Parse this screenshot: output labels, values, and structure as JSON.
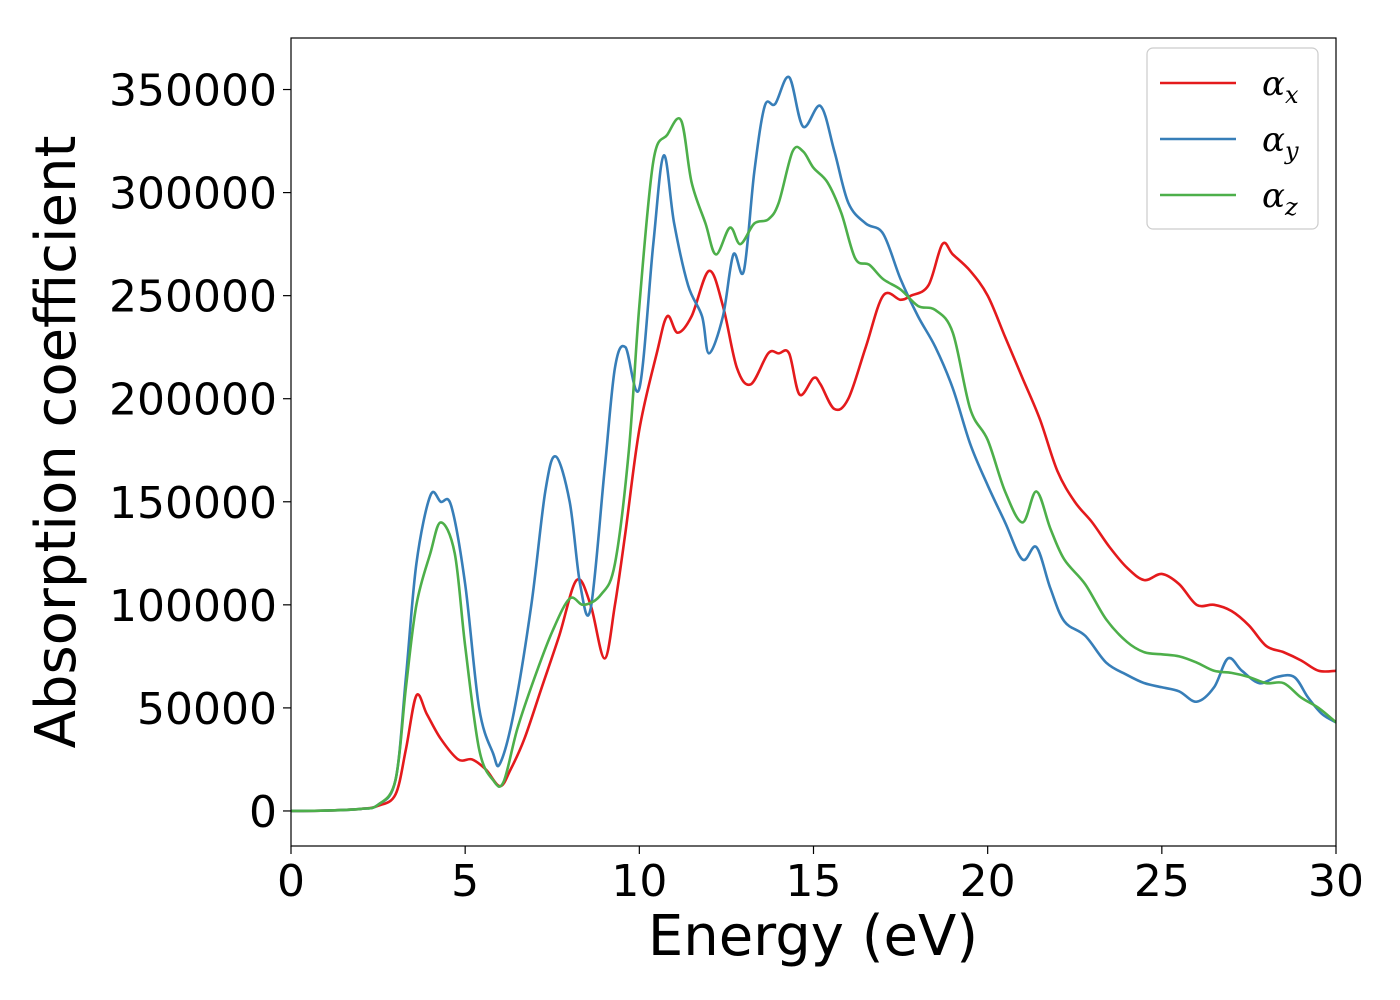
{
  "chart_data": {
    "type": "line",
    "title": "",
    "xlabel": "Energy (eV)",
    "ylabel": "Absorption coefficient",
    "xlim": [
      0,
      30
    ],
    "ylim": [
      -17000,
      375000
    ],
    "xticks": [
      0,
      5,
      10,
      15,
      20,
      25,
      30
    ],
    "yticks": [
      0,
      50000,
      100000,
      150000,
      200000,
      250000,
      300000,
      350000
    ],
    "grid": false,
    "legend_position": "top-right",
    "series": [
      {
        "name": "α",
        "subscript": "x",
        "color": "#e41a1c",
        "x": [
          0,
          1,
          2,
          2.5,
          3,
          3.3,
          3.6,
          3.9,
          4.3,
          4.8,
          5.2,
          5.6,
          6.0,
          6.3,
          6.7,
          7.2,
          7.7,
          8.2,
          8.6,
          9.0,
          9.3,
          9.6,
          10.0,
          10.5,
          10.8,
          11.1,
          11.5,
          12.0,
          12.4,
          12.8,
          13.2,
          13.7,
          14.0,
          14.3,
          14.6,
          15.0,
          15.2,
          15.6,
          16.0,
          16.5,
          17.0,
          17.5,
          17.8,
          18.3,
          18.7,
          19.0,
          19.5,
          20.0,
          20.5,
          21.0,
          21.5,
          22.0,
          22.5,
          23.0,
          23.5,
          24.0,
          24.5,
          25.0,
          25.5,
          26.0,
          26.5,
          27.0,
          27.5,
          28.0,
          28.5,
          29.0,
          29.5,
          30.0
        ],
        "values": [
          0,
          200,
          1000,
          2500,
          8000,
          30000,
          56000,
          47000,
          35000,
          25000,
          25000,
          20000,
          12000,
          20000,
          35000,
          60000,
          85000,
          112000,
          100000,
          74000,
          100000,
          135000,
          185000,
          222000,
          240000,
          232000,
          240000,
          262000,
          245000,
          215000,
          207000,
          222000,
          222000,
          222000,
          202000,
          210000,
          207000,
          195000,
          200000,
          225000,
          250000,
          248000,
          250000,
          255000,
          275000,
          270000,
          262000,
          250000,
          230000,
          210000,
          190000,
          165000,
          150000,
          140000,
          128000,
          118000,
          112000,
          115000,
          110000,
          100000,
          100000,
          97000,
          90000,
          80000,
          77000,
          73000,
          68000,
          68000
        ]
      },
      {
        "name": "α",
        "subscript": "y",
        "color": "#377eb8",
        "x": [
          0,
          1,
          2,
          2.5,
          3,
          3.3,
          3.6,
          4.0,
          4.3,
          4.6,
          5.0,
          5.4,
          5.8,
          6.0,
          6.4,
          6.9,
          7.3,
          7.6,
          8.0,
          8.3,
          8.6,
          9.0,
          9.3,
          9.6,
          10.0,
          10.4,
          10.7,
          11.0,
          11.4,
          11.8,
          12.0,
          12.4,
          12.7,
          13.0,
          13.3,
          13.6,
          13.9,
          14.3,
          14.7,
          15.2,
          15.6,
          16.0,
          16.5,
          17.0,
          17.5,
          18.0,
          18.5,
          19.0,
          19.5,
          20.0,
          20.5,
          21.0,
          21.4,
          21.8,
          22.2,
          22.8,
          23.4,
          24.0,
          24.5,
          25.0,
          25.5,
          26.0,
          26.5,
          26.9,
          27.3,
          27.8,
          28.3,
          28.8,
          29.2,
          29.6,
          30.0
        ],
        "values": [
          0,
          200,
          1000,
          3000,
          15000,
          65000,
          120000,
          153000,
          150000,
          148000,
          110000,
          50000,
          28000,
          23000,
          48000,
          100000,
          155000,
          172000,
          150000,
          110000,
          98000,
          165000,
          215000,
          225000,
          205000,
          275000,
          318000,
          285000,
          255000,
          240000,
          222000,
          240000,
          270000,
          262000,
          310000,
          342000,
          343000,
          356000,
          332000,
          342000,
          320000,
          295000,
          285000,
          280000,
          258000,
          240000,
          225000,
          205000,
          178000,
          158000,
          140000,
          122000,
          128000,
          108000,
          92000,
          85000,
          72000,
          66000,
          62000,
          60000,
          58000,
          53000,
          60000,
          74000,
          68000,
          62000,
          65000,
          65000,
          55000,
          47000,
          43000
        ]
      },
      {
        "name": "α",
        "subscript": "z",
        "color": "#4daf4a",
        "x": [
          0,
          1,
          2,
          2.5,
          3,
          3.3,
          3.6,
          4.0,
          4.3,
          4.7,
          5.0,
          5.4,
          5.8,
          6.1,
          6.5,
          7.0,
          7.5,
          8.0,
          8.4,
          8.9,
          9.3,
          9.7,
          10.0,
          10.4,
          10.8,
          11.2,
          11.5,
          11.9,
          12.2,
          12.6,
          12.9,
          13.3,
          13.7,
          14.0,
          14.4,
          14.7,
          15.0,
          15.4,
          15.8,
          16.2,
          16.6,
          17.0,
          17.5,
          18.0,
          18.5,
          19.0,
          19.5,
          20.0,
          20.5,
          21.0,
          21.4,
          21.8,
          22.2,
          22.8,
          23.4,
          24.0,
          24.5,
          25.0,
          25.5,
          26.0,
          26.5,
          27.0,
          27.5,
          28.0,
          28.5,
          29.0,
          29.5,
          30.0
        ],
        "values": [
          0,
          200,
          1000,
          3000,
          15000,
          60000,
          100000,
          125000,
          140000,
          125000,
          80000,
          30000,
          15000,
          14000,
          40000,
          65000,
          87000,
          103000,
          100000,
          105000,
          120000,
          175000,
          245000,
          315000,
          328000,
          335000,
          305000,
          285000,
          270000,
          283000,
          275000,
          285000,
          287000,
          295000,
          320000,
          320000,
          312000,
          305000,
          290000,
          268000,
          265000,
          258000,
          253000,
          245000,
          243000,
          232000,
          195000,
          180000,
          155000,
          140000,
          155000,
          137000,
          122000,
          110000,
          93000,
          82000,
          77000,
          76000,
          75000,
          72000,
          68000,
          67000,
          65000,
          62000,
          62000,
          55000,
          50000,
          43000
        ]
      }
    ]
  }
}
